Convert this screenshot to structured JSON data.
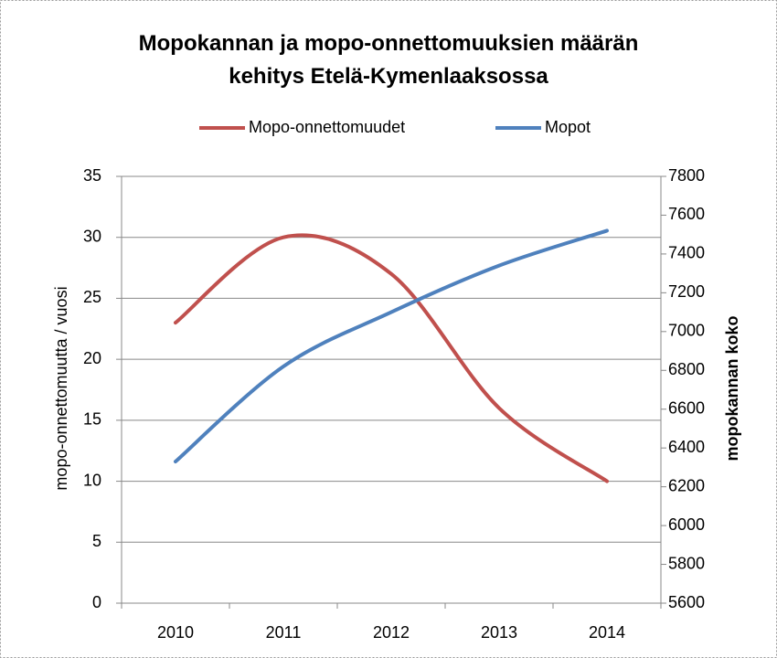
{
  "chart_data": {
    "type": "line",
    "title": "Mopokannan ja mopo-onnettomuuksien määrän kehitys Etelä-Kymenlaaksossa",
    "categories": [
      "2010",
      "2011",
      "2012",
      "2013",
      "2014"
    ],
    "series": [
      {
        "name": "Mopo-onnettomuudet",
        "color": "#c0504d",
        "values": [
          23,
          30,
          27,
          16,
          10
        ]
      },
      {
        "name": "Mopot",
        "color": "#4f81bd",
        "values": [
          6330,
          6820,
          7100,
          7340,
          7520
        ],
        "axis": "y2"
      }
    ],
    "ylabel": "mopo-onnettomuutta / vuosi",
    "y2label": "mopokannan koko",
    "ylim": [
      0,
      35
    ],
    "yticks": [
      0,
      5,
      10,
      15,
      20,
      25,
      30,
      35
    ],
    "y2lim": [
      5600,
      7800
    ],
    "y2ticks": [
      5600,
      5800,
      6000,
      6200,
      6400,
      6600,
      6800,
      7000,
      7200,
      7400,
      7600,
      7800
    ],
    "grid": true,
    "smooth": true,
    "legend": "top"
  }
}
